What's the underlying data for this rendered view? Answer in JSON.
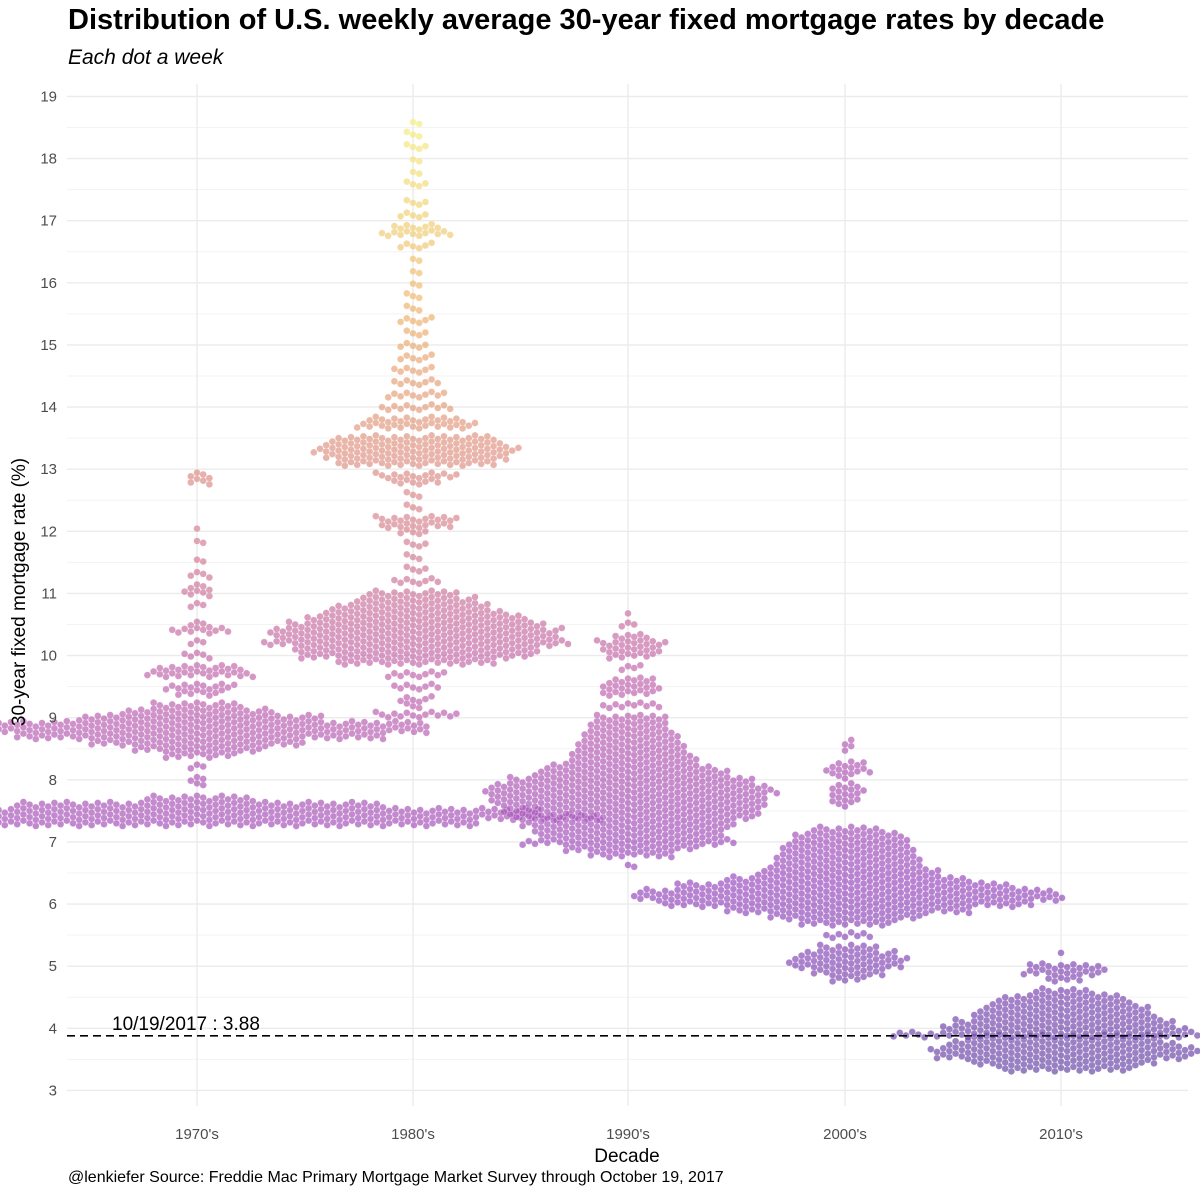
{
  "chart_data": {
    "type": "scatter",
    "subtype": "beeswarm",
    "title": "Distribution of U.S. weekly average 30-year fixed mortgage rates by decade",
    "subtitle": "Each dot a week",
    "xlabel": "Decade",
    "ylabel": "30-year fixed mortgage rate (%)",
    "caption": "@lenkiefer Source: Freddie Mac Primary Mortgage Market Survey through October 19, 2017",
    "categories": [
      "1970's",
      "1980's",
      "1990's",
      "2000's",
      "2010's"
    ],
    "yticks": [
      3,
      4,
      5,
      6,
      7,
      8,
      9,
      10,
      11,
      12,
      13,
      14,
      15,
      16,
      17,
      18,
      19
    ],
    "ylim": [
      2.75,
      19.2
    ],
    "grid": true,
    "legend": "none",
    "color_scale": {
      "name": "plasma",
      "low": 3.3,
      "high": 18.6,
      "stops": [
        "#6a4aa8",
        "#9b4fbf",
        "#c067b0",
        "#d98a8e",
        "#eeb470",
        "#f4ee80"
      ]
    },
    "reference_line": {
      "value": 3.88,
      "label": "10/19/2017 :  3.88",
      "style": "dashed"
    },
    "series": [
      {
        "decade": "1970's",
        "distribution": [
          [
            7.3,
            90
          ],
          [
            7.4,
            130
          ],
          [
            7.5,
            110
          ],
          [
            7.6,
            60
          ],
          [
            7.7,
            18
          ],
          [
            7.9,
            2
          ],
          [
            8.0,
            3
          ],
          [
            8.2,
            3
          ],
          [
            8.4,
            12
          ],
          [
            8.5,
            22
          ],
          [
            8.6,
            35
          ],
          [
            8.7,
            60
          ],
          [
            8.8,
            75
          ],
          [
            8.9,
            75
          ],
          [
            9.0,
            40
          ],
          [
            9.1,
            25
          ],
          [
            9.2,
            15
          ],
          [
            9.4,
            8
          ],
          [
            9.5,
            12
          ],
          [
            9.7,
            18
          ],
          [
            9.8,
            14
          ],
          [
            10.0,
            5
          ],
          [
            10.2,
            3
          ],
          [
            10.4,
            10
          ],
          [
            10.5,
            4
          ],
          [
            10.8,
            3
          ],
          [
            11.0,
            5
          ],
          [
            11.1,
            4
          ],
          [
            11.3,
            4
          ],
          [
            11.5,
            2
          ],
          [
            11.8,
            2
          ],
          [
            12.0,
            1
          ],
          [
            12.8,
            4
          ],
          [
            12.9,
            4
          ]
        ]
      },
      {
        "decade": "1980's",
        "distribution": [
          [
            9.05,
            14
          ],
          [
            9.2,
            3
          ],
          [
            9.3,
            6
          ],
          [
            9.5,
            8
          ],
          [
            9.7,
            10
          ],
          [
            9.9,
            26
          ],
          [
            10.0,
            38
          ],
          [
            10.1,
            40
          ],
          [
            10.2,
            50
          ],
          [
            10.3,
            46
          ],
          [
            10.4,
            48
          ],
          [
            10.5,
            42
          ],
          [
            10.6,
            36
          ],
          [
            10.7,
            30
          ],
          [
            10.8,
            25
          ],
          [
            10.9,
            20
          ],
          [
            11.0,
            15
          ],
          [
            11.2,
            8
          ],
          [
            11.4,
            4
          ],
          [
            11.6,
            3
          ],
          [
            11.8,
            4
          ],
          [
            12.0,
            5
          ],
          [
            12.1,
            12
          ],
          [
            12.2,
            14
          ],
          [
            12.4,
            3
          ],
          [
            12.6,
            3
          ],
          [
            12.8,
            8
          ],
          [
            12.9,
            14
          ],
          [
            13.1,
            26
          ],
          [
            13.2,
            30
          ],
          [
            13.3,
            34
          ],
          [
            13.4,
            30
          ],
          [
            13.5,
            26
          ],
          [
            13.7,
            20
          ],
          [
            13.8,
            16
          ],
          [
            14.0,
            12
          ],
          [
            14.2,
            10
          ],
          [
            14.4,
            8
          ],
          [
            14.6,
            7
          ],
          [
            14.8,
            6
          ],
          [
            15.0,
            5
          ],
          [
            15.2,
            4
          ],
          [
            15.4,
            6
          ],
          [
            15.6,
            3
          ],
          [
            15.8,
            3
          ],
          [
            16.0,
            2
          ],
          [
            16.2,
            2
          ],
          [
            16.4,
            2
          ],
          [
            16.6,
            6
          ],
          [
            16.8,
            12
          ],
          [
            16.9,
            8
          ],
          [
            17.1,
            5
          ],
          [
            17.3,
            4
          ],
          [
            17.6,
            4
          ],
          [
            17.8,
            2
          ],
          [
            18.0,
            2
          ],
          [
            18.2,
            4
          ],
          [
            18.4,
            3
          ],
          [
            18.6,
            2
          ]
        ]
      },
      {
        "decade": "1990's",
        "distribution": [
          [
            6.6,
            2
          ],
          [
            6.8,
            14
          ],
          [
            6.9,
            22
          ],
          [
            7.0,
            35
          ],
          [
            7.1,
            30
          ],
          [
            7.2,
            32
          ],
          [
            7.3,
            35
          ],
          [
            7.4,
            40
          ],
          [
            7.5,
            42
          ],
          [
            7.6,
            44
          ],
          [
            7.7,
            45
          ],
          [
            7.8,
            48
          ],
          [
            7.9,
            45
          ],
          [
            8.0,
            40
          ],
          [
            8.1,
            32
          ],
          [
            8.2,
            28
          ],
          [
            8.3,
            22
          ],
          [
            8.4,
            20
          ],
          [
            8.5,
            18
          ],
          [
            8.6,
            17
          ],
          [
            8.7,
            16
          ],
          [
            8.8,
            14
          ],
          [
            8.9,
            13
          ],
          [
            9.0,
            12
          ],
          [
            9.2,
            10
          ],
          [
            9.4,
            9
          ],
          [
            9.5,
            10
          ],
          [
            9.6,
            8
          ],
          [
            9.8,
            4
          ],
          [
            10.0,
            8
          ],
          [
            10.1,
            10
          ],
          [
            10.2,
            12
          ],
          [
            10.3,
            6
          ],
          [
            10.5,
            3
          ],
          [
            10.65,
            1
          ]
        ]
      },
      {
        "decade": "2000's",
        "distribution": [
          [
            4.8,
            6
          ],
          [
            4.9,
            12
          ],
          [
            5.0,
            18
          ],
          [
            5.1,
            20
          ],
          [
            5.2,
            16
          ],
          [
            5.3,
            10
          ],
          [
            5.5,
            8
          ],
          [
            5.7,
            16
          ],
          [
            5.8,
            25
          ],
          [
            5.9,
            40
          ],
          [
            6.0,
            60
          ],
          [
            6.1,
            70
          ],
          [
            6.2,
            68
          ],
          [
            6.3,
            55
          ],
          [
            6.4,
            40
          ],
          [
            6.5,
            30
          ],
          [
            6.6,
            26
          ],
          [
            6.7,
            24
          ],
          [
            6.8,
            22
          ],
          [
            6.9,
            22
          ],
          [
            7.0,
            20
          ],
          [
            7.1,
            18
          ],
          [
            7.2,
            12
          ],
          [
            7.6,
            3
          ],
          [
            7.7,
            5
          ],
          [
            7.8,
            6
          ],
          [
            7.9,
            5
          ],
          [
            8.05,
            3
          ],
          [
            8.15,
            8
          ],
          [
            8.25,
            6
          ],
          [
            8.5,
            2
          ],
          [
            8.6,
            2
          ]
        ]
      },
      {
        "decade": "2010's",
        "distribution": [
          [
            3.35,
            22
          ],
          [
            3.45,
            30
          ],
          [
            3.55,
            42
          ],
          [
            3.65,
            44
          ],
          [
            3.75,
            38
          ],
          [
            3.85,
            32
          ],
          [
            3.9,
            55
          ],
          [
            4.0,
            40
          ],
          [
            4.1,
            36
          ],
          [
            4.2,
            30
          ],
          [
            4.3,
            28
          ],
          [
            4.4,
            24
          ],
          [
            4.5,
            20
          ],
          [
            4.6,
            10
          ],
          [
            4.8,
            6
          ],
          [
            4.9,
            14
          ],
          [
            5.0,
            12
          ],
          [
            5.2,
            1
          ]
        ]
      }
    ]
  }
}
